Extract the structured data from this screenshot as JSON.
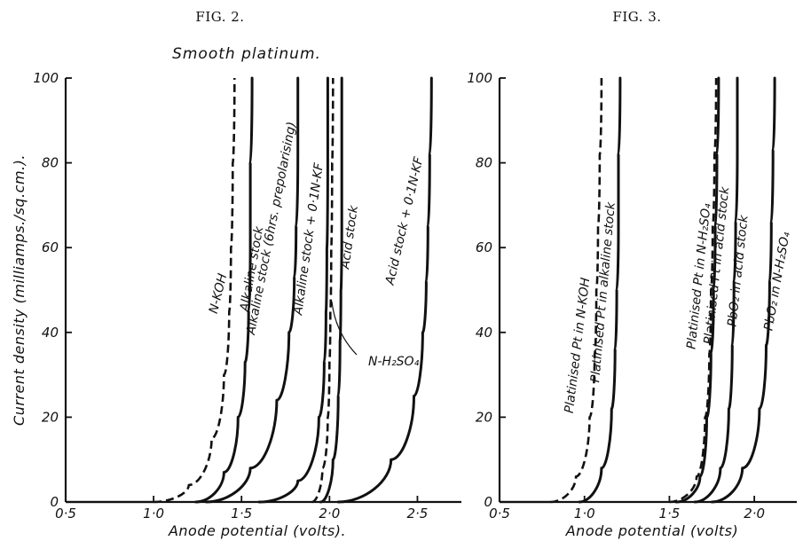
{
  "chart_data": [
    {
      "type": "line",
      "figure_label": "FIG. 2.",
      "title": "Smooth platinum.",
      "xlabel": "Anode potential (volts).",
      "ylabel": "Current density (milliamps./sq.cm.).",
      "xlim": [
        0.5,
        2.75
      ],
      "ylim": [
        0,
        100
      ],
      "x_ticks": [
        0.5,
        1.0,
        1.5,
        2.0,
        2.5
      ],
      "x_tick_labels": [
        "0·5",
        "1·0",
        "1·5",
        "2·0",
        "2·5"
      ],
      "y_ticks": [
        0,
        20,
        40,
        60,
        80,
        100
      ],
      "y_tick_labels": [
        "0",
        "20",
        "40",
        "60",
        "80",
        "100"
      ],
      "grid": false,
      "legend": "none",
      "series": [
        {
          "name": "N-KOH",
          "dashed": true,
          "x": [
            1.0,
            1.2,
            1.33,
            1.4,
            1.43,
            1.44,
            1.45,
            1.46
          ],
          "y": [
            0,
            4,
            15,
            30,
            45,
            60,
            80,
            100
          ]
        },
        {
          "name": "Alkaline stock",
          "dashed": false,
          "x": [
            1.24,
            1.4,
            1.48,
            1.52,
            1.54,
            1.55,
            1.55,
            1.56
          ],
          "y": [
            0,
            7,
            20,
            33,
            45,
            60,
            80,
            100
          ]
        },
        {
          "name": "Alkaline stock (6hrs. prepolarising)",
          "dashed": false,
          "x": [
            1.3,
            1.55,
            1.7,
            1.77,
            1.8,
            1.81,
            1.82,
            1.82
          ],
          "y": [
            0,
            8,
            24,
            40,
            53,
            65,
            82,
            100
          ]
        },
        {
          "name": "Alkaline stock + 0·1N-KF",
          "dashed": false,
          "x": [
            1.6,
            1.82,
            1.94,
            1.97,
            1.98,
            1.985,
            1.99,
            1.99
          ],
          "y": [
            0,
            5,
            20,
            33,
            45,
            60,
            80,
            100
          ]
        },
        {
          "name": "N-H₂SO₄",
          "dashed": true,
          "x": [
            1.9,
            1.96,
            1.99,
            2.0,
            2.005,
            2.01,
            2.015,
            2.02
          ],
          "y": [
            0,
            8,
            20,
            33,
            45,
            60,
            80,
            100
          ]
        },
        {
          "name": "Acid stock",
          "dashed": false,
          "x": [
            1.95,
            2.02,
            2.05,
            2.06,
            2.065,
            2.07,
            2.07,
            2.07
          ],
          "y": [
            0,
            10,
            25,
            38,
            50,
            65,
            83,
            100
          ]
        },
        {
          "name": "Acid stock + 0·1N-KF",
          "dashed": false,
          "x": [
            2.05,
            2.35,
            2.48,
            2.53,
            2.55,
            2.56,
            2.57,
            2.58
          ],
          "y": [
            0,
            10,
            25,
            40,
            52,
            65,
            82,
            100
          ]
        }
      ],
      "annotations": [
        {
          "text": "N-H₂SO₄",
          "series": "N-H₂SO₄"
        }
      ]
    },
    {
      "type": "line",
      "figure_label": "FIG. 3.",
      "title": "",
      "xlabel": "Anode potential (volts)",
      "ylabel": "",
      "xlim": [
        0.5,
        2.25
      ],
      "ylim": [
        0,
        100
      ],
      "x_ticks": [
        0.5,
        1.0,
        1.5,
        2.0
      ],
      "x_tick_labels": [
        "0·5",
        "1·0",
        "1·5",
        "2·0"
      ],
      "y_ticks": [
        0,
        20,
        40,
        60,
        80,
        100
      ],
      "y_tick_labels": [
        "0",
        "20",
        "40",
        "60",
        "80",
        "100"
      ],
      "grid": false,
      "legend": "none",
      "series": [
        {
          "name": "Platinised Pt in N-KOH",
          "dashed": true,
          "x": [
            0.8,
            0.95,
            1.03,
            1.06,
            1.07,
            1.08,
            1.09,
            1.1
          ],
          "y": [
            0,
            6,
            20,
            35,
            50,
            65,
            82,
            100
          ]
        },
        {
          "name": "Platinised Pt in alkaline stock",
          "dashed": false,
          "x": [
            0.97,
            1.1,
            1.16,
            1.18,
            1.19,
            1.2,
            1.2,
            1.21
          ],
          "y": [
            0,
            8,
            22,
            36,
            50,
            65,
            82,
            100
          ]
        },
        {
          "name": "Platinised Pt in N-H₂SO₄",
          "dashed": true,
          "x": [
            1.5,
            1.66,
            1.71,
            1.735,
            1.745,
            1.755,
            1.765,
            1.775
          ],
          "y": [
            0,
            6,
            20,
            35,
            50,
            65,
            82,
            100
          ]
        },
        {
          "name": "Platinised Pt in acid stock",
          "dashed": false,
          "x": [
            1.54,
            1.68,
            1.72,
            1.745,
            1.76,
            1.77,
            1.78,
            1.79
          ],
          "y": [
            0,
            6,
            20,
            35,
            50,
            65,
            82,
            100
          ]
        },
        {
          "name": "PbO₂ in acid stock",
          "dashed": false,
          "x": [
            1.65,
            1.8,
            1.85,
            1.87,
            1.88,
            1.89,
            1.9,
            1.9
          ],
          "y": [
            0,
            8,
            22,
            37,
            52,
            66,
            83,
            100
          ]
        },
        {
          "name": "PbO₂ in N-H₂SO₄",
          "dashed": false,
          "x": [
            1.75,
            1.93,
            2.03,
            2.07,
            2.09,
            2.1,
            2.11,
            2.12
          ],
          "y": [
            0,
            8,
            22,
            37,
            52,
            66,
            83,
            100
          ]
        }
      ]
    }
  ]
}
